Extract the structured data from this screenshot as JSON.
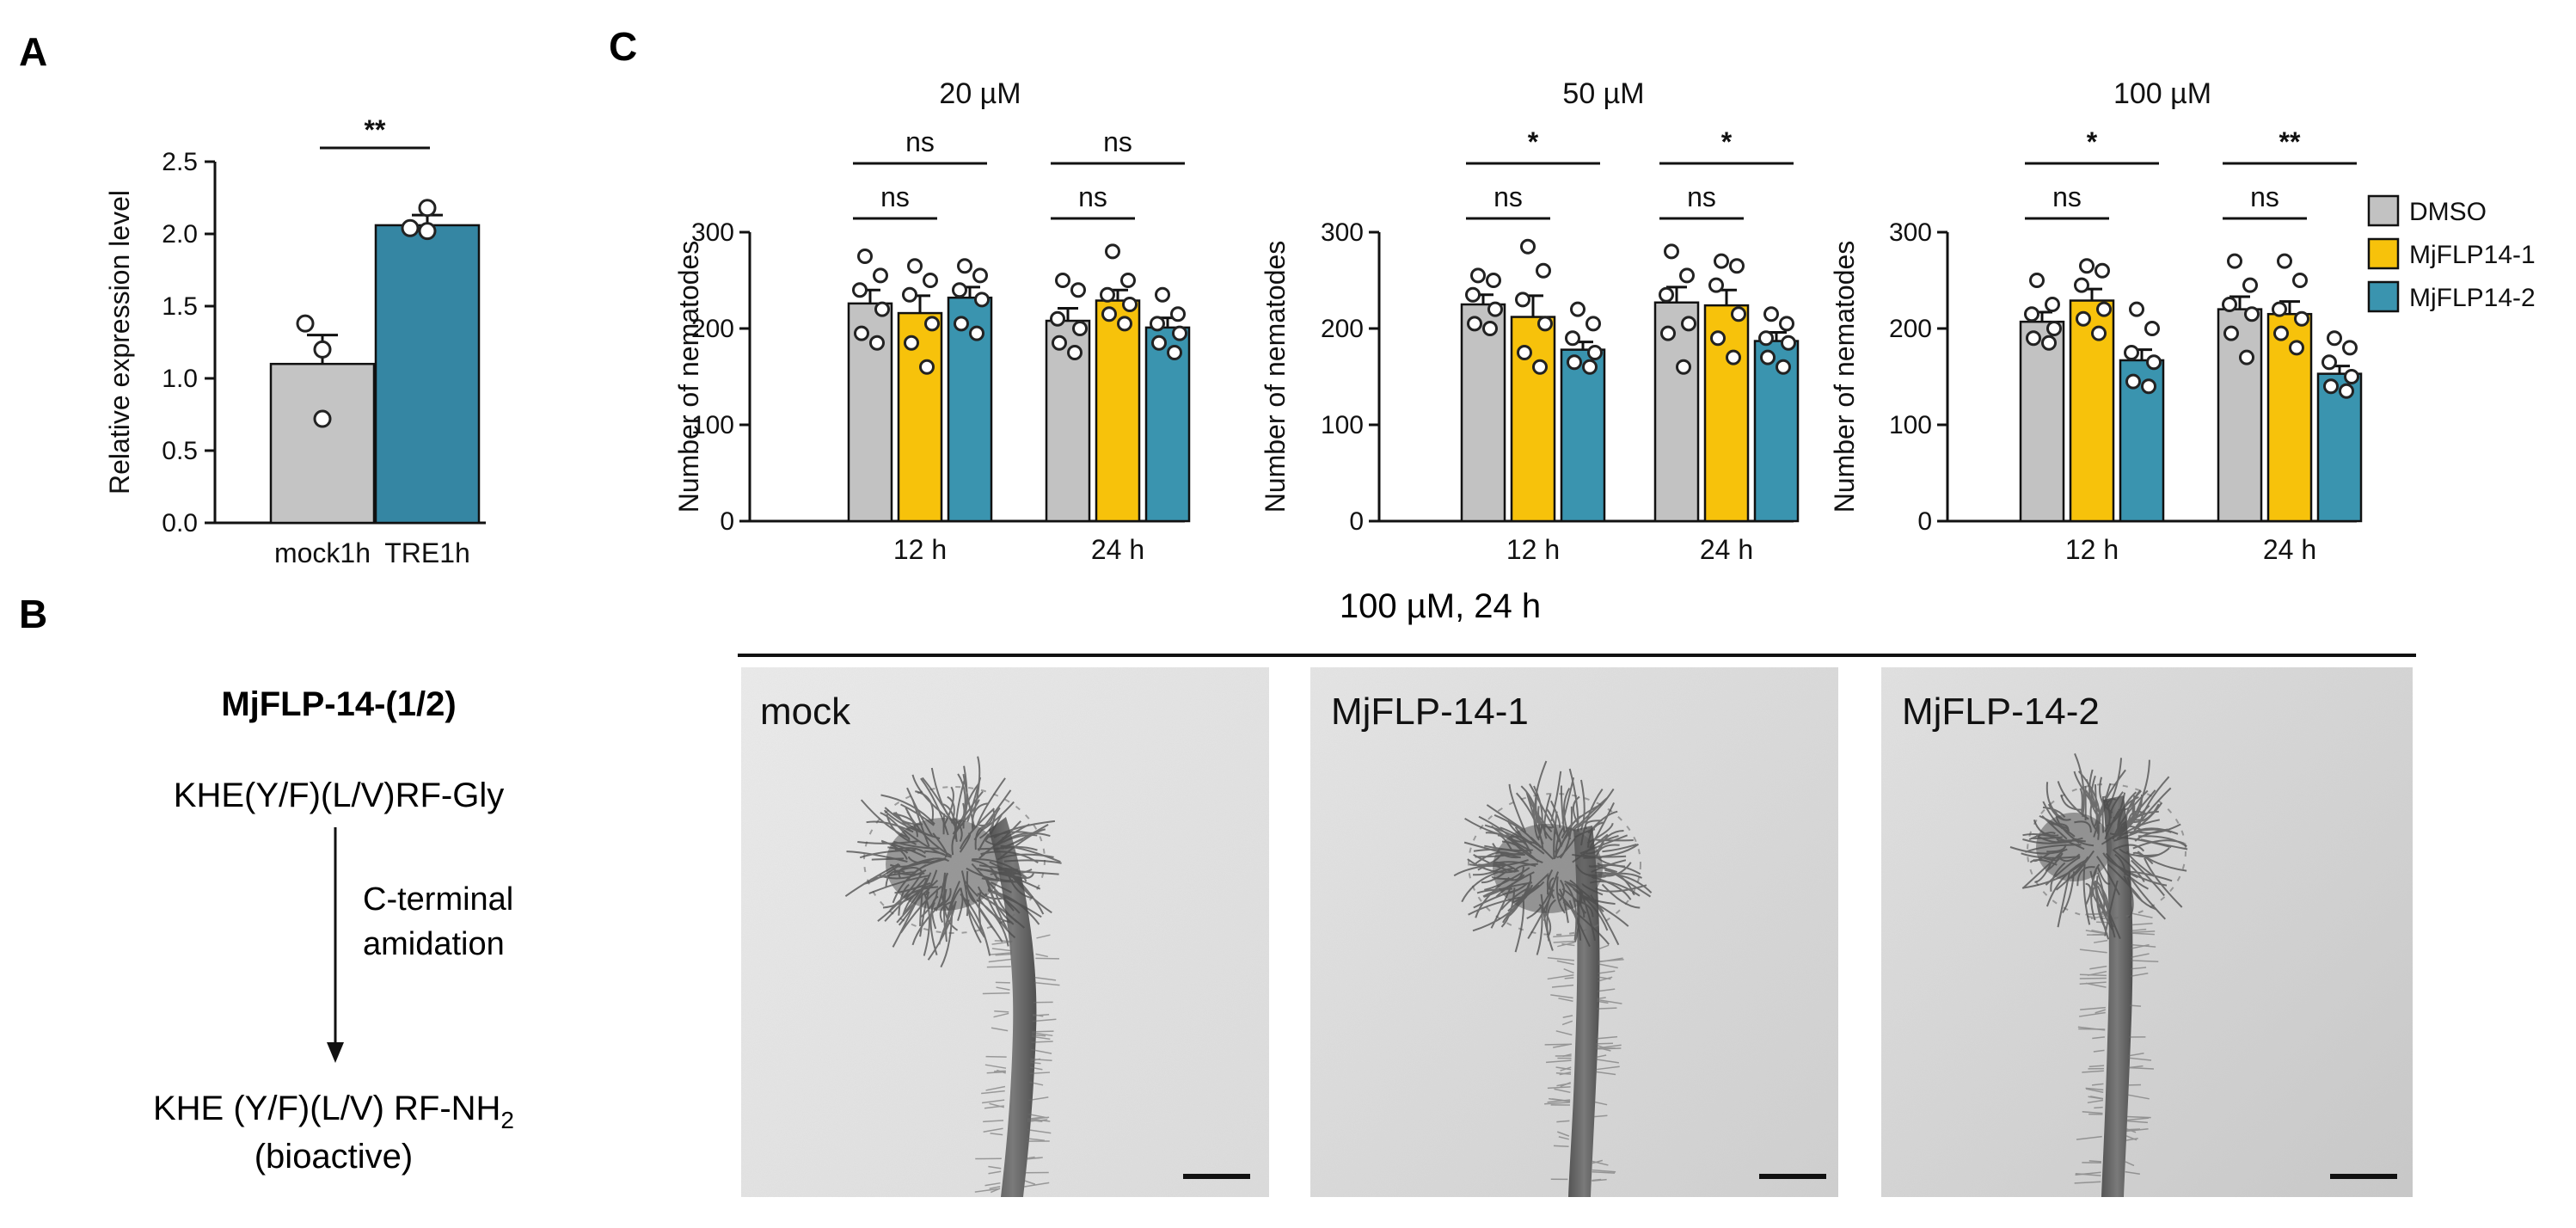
{
  "panels": {
    "A": "A",
    "B": "B",
    "C": "C"
  },
  "colors": {
    "dmso": "#c2c2c2",
    "mjflp14_1": "#f7c20b",
    "mjflp14_2": "#3a94af",
    "tre": "#3586a3",
    "mock": "#c4c4c4"
  },
  "panel_a": {
    "sig": "**"
  },
  "panel_c": {
    "legend": [
      "DMSO",
      "MjFLP14-1",
      "MjFLP14-2"
    ],
    "charts": [
      {
        "sig": [
          [
            "ns",
            "ns"
          ],
          [
            "ns",
            "ns"
          ]
        ]
      },
      {
        "sig": [
          [
            "ns",
            "*"
          ],
          [
            "ns",
            "*"
          ]
        ]
      },
      {
        "sig": [
          [
            "ns",
            "*"
          ],
          [
            "ns",
            "**"
          ]
        ]
      }
    ]
  },
  "panel_b": {
    "peptide_name": "MjFLP-14-(1/2)",
    "precursor": "KHE(Y/F)(L/V)RF-Gly",
    "step_line1": "C-terminal",
    "step_line2": "amidation",
    "product_main": "KHE (Y/F)(L/V) RF-NH",
    "product_sub": "2",
    "product_note": "(bioactive)",
    "photo_header": "100 µM, 24 h",
    "photos": [
      "mock",
      "MjFLP-14-1",
      "MjFLP-14-2"
    ]
  },
  "chart_data": [
    {
      "type": "bar",
      "categories": [
        "mock1h",
        "TRE1h"
      ],
      "values": [
        1.1,
        2.06
      ],
      "errors": [
        0.2,
        0.07
      ],
      "points": [
        [
          1.2,
          1.38,
          0.72
        ],
        [
          2.18,
          2.04,
          2.02
        ]
      ],
      "ylabel": "Relative expression level",
      "ylim": [
        0,
        2.5
      ],
      "yticks": [
        0,
        0.5,
        1.0,
        1.5,
        2.0,
        2.5
      ],
      "ytick_labels": [
        "0.0",
        "0.5",
        "1.0",
        "1.5",
        "2.0",
        "2.5"
      ]
    },
    {
      "type": "bar",
      "title": "20 µM",
      "categories": [
        "12 h",
        "24 h"
      ],
      "ylabel": "Number of nematodes",
      "ylim": [
        0,
        300
      ],
      "yticks": [
        0,
        100,
        200,
        300
      ],
      "series": [
        {
          "name": "DMSO",
          "values": [
            226,
            208
          ],
          "errors": [
            14,
            13
          ],
          "points": [
            [
              275,
              255,
              240,
              220,
              195,
              185
            ],
            [
              250,
              240,
              210,
              200,
              185,
              175
            ]
          ]
        },
        {
          "name": "MjFLP14-1",
          "values": [
            216,
            229
          ],
          "errors": [
            18,
            11
          ],
          "points": [
            [
              265,
              250,
              235,
              205,
              185,
              160
            ],
            [
              280,
              250,
              235,
              225,
              215,
              205
            ]
          ]
        },
        {
          "name": "MjFLP14-2",
          "values": [
            232,
            201
          ],
          "errors": [
            11,
            10
          ],
          "points": [
            [
              265,
              255,
              240,
              230,
              205,
              195
            ],
            [
              235,
              215,
              205,
              195,
              185,
              175
            ]
          ]
        }
      ]
    },
    {
      "type": "bar",
      "title": "50 µM",
      "categories": [
        "12 h",
        "24 h"
      ],
      "ylabel": "Number of nematodes",
      "ylim": [
        0,
        300
      ],
      "yticks": [
        0,
        100,
        200,
        300
      ],
      "series": [
        {
          "name": "DMSO",
          "values": [
            225,
            227
          ],
          "errors": [
            10,
            16
          ],
          "points": [
            [
              255,
              250,
              235,
              220,
              205,
              200
            ],
            [
              280,
              255,
              235,
              205,
              195,
              160
            ]
          ]
        },
        {
          "name": "MjFLP14-1",
          "values": [
            212,
            224
          ],
          "errors": [
            22,
            16
          ],
          "points": [
            [
              285,
              260,
              230,
              205,
              175,
              160
            ],
            [
              270,
              265,
              245,
              215,
              190,
              170
            ]
          ]
        },
        {
          "name": "MjFLP14-2",
          "values": [
            178,
            187
          ],
          "errors": [
            8,
            9
          ],
          "points": [
            [
              220,
              205,
              190,
              175,
              165,
              160
            ],
            [
              215,
              205,
              190,
              185,
              170,
              160
            ]
          ]
        }
      ]
    },
    {
      "type": "bar",
      "title": "100 µM",
      "categories": [
        "12 h",
        "24 h"
      ],
      "ylabel": "Number of nematodes",
      "ylim": [
        0,
        300
      ],
      "yticks": [
        0,
        100,
        200,
        300
      ],
      "series": [
        {
          "name": "DMSO",
          "values": [
            207,
            220
          ],
          "errors": [
            10,
            13
          ],
          "points": [
            [
              250,
              225,
              215,
              200,
              190,
              185
            ],
            [
              270,
              245,
              225,
              215,
              195,
              170
            ]
          ]
        },
        {
          "name": "MjFLP14-1",
          "values": [
            229,
            215
          ],
          "errors": [
            12,
            13
          ],
          "points": [
            [
              265,
              260,
              245,
              220,
              210,
              195
            ],
            [
              270,
              250,
              220,
              210,
              195,
              180
            ]
          ]
        },
        {
          "name": "MjFLP14-2",
          "values": [
            167,
            153
          ],
          "errors": [
            11,
            8
          ],
          "points": [
            [
              220,
              200,
              175,
              165,
              145,
              140
            ],
            [
              190,
              180,
              165,
              150,
              140,
              135
            ]
          ]
        }
      ]
    }
  ]
}
